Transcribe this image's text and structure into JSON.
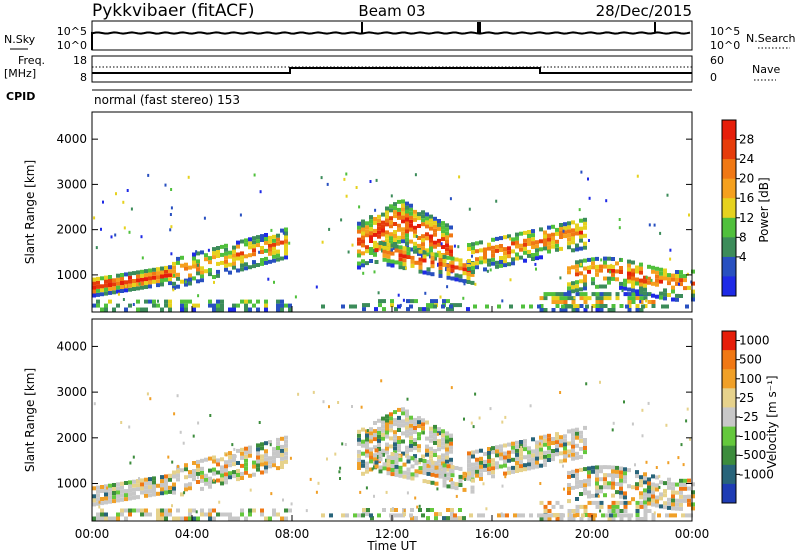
{
  "header": {
    "station": "Pykkvibaer (fitACF)",
    "beam": "Beam 03",
    "date": "28/Dec/2015"
  },
  "strip_nsky": {
    "left_label": "N.Sky",
    "right_label": "N.Search",
    "left_ticks": [
      "10^5",
      "10^0"
    ],
    "right_ticks": [
      "10^5",
      "10^0"
    ]
  },
  "strip_freq": {
    "left_label_1": "Freq.",
    "left_label_2": "[MHz]",
    "right_label": "Nave",
    "left_ticks": [
      "18",
      "8"
    ],
    "right_ticks": [
      "60",
      "0"
    ]
  },
  "cpid": {
    "label": "CPID",
    "mode_text": "normal (fast stereo) 153"
  },
  "chart_data": [
    {
      "type": "heatmap",
      "name": "power",
      "ylabel": "Slant Range [km]",
      "ylim": [
        180,
        4600
      ],
      "yticks": [
        "1000",
        "2000",
        "3000",
        "4000"
      ],
      "colorbar_label": "Power [dB]",
      "colorbar_ticks": [
        "28",
        "24",
        "20",
        "16",
        "12",
        "8",
        "4"
      ],
      "colors": [
        "#1e2ae6",
        "#2850c0",
        "#3c8c5a",
        "#50c03c",
        "#e6d21e",
        "#f5a01e",
        "#f07814",
        "#e63c0a",
        "#e61e0a"
      ]
    },
    {
      "type": "heatmap",
      "name": "velocity",
      "ylabel": "Slant Range [km]",
      "ylim": [
        180,
        4600
      ],
      "yticks": [
        "1000",
        "2000",
        "3000",
        "4000"
      ],
      "colorbar_label": "Velocity [m s⁻¹]",
      "colorbar_ticks": [
        "1000",
        "500",
        "100",
        "25",
        "-25",
        "-100",
        "-500",
        "-1000"
      ],
      "colors": [
        "#1e3cb4",
        "#28647a",
        "#3c8c3c",
        "#64c83c",
        "#c8c8c8",
        "#e6d28c",
        "#f0a028",
        "#f07814",
        "#e61e0a"
      ]
    }
  ],
  "x_axis": {
    "label": "Time UT",
    "ticks": [
      "00:00",
      "04:00",
      "08:00",
      "12:00",
      "16:00",
      "20:00",
      "00:00"
    ]
  }
}
